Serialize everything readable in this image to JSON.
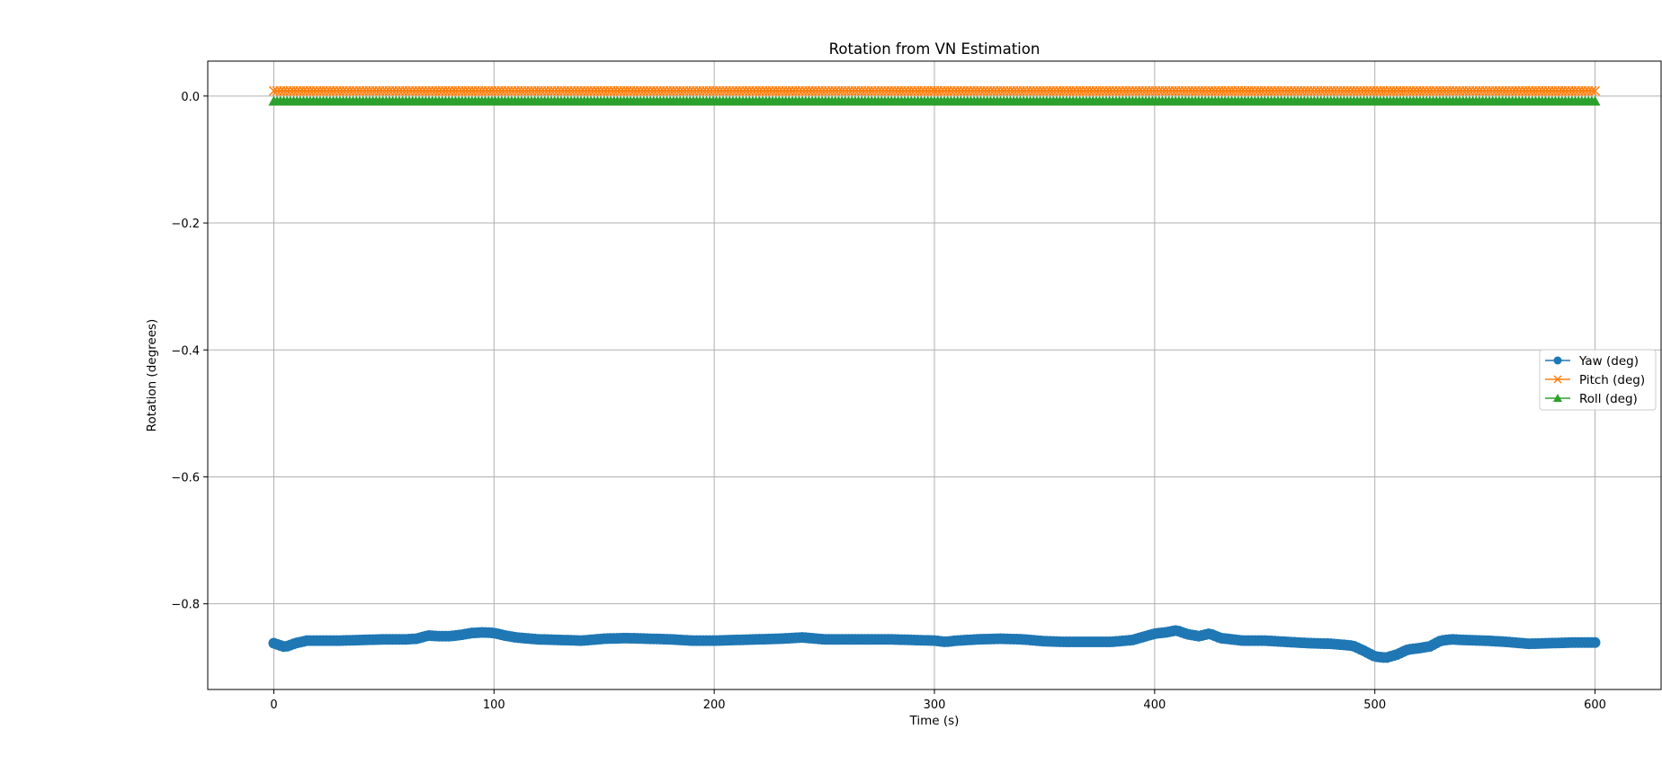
{
  "chart_data": {
    "type": "line",
    "title": "Rotation from VN Estimation",
    "xlabel": "Time (s)",
    "ylabel": "Rotation (degrees)",
    "xlim": [
      -30,
      630
    ],
    "ylim": [
      -0.935,
      0.055
    ],
    "xticks": [
      0,
      100,
      200,
      300,
      400,
      500,
      600
    ],
    "xtick_labels": [
      "0",
      "100",
      "200",
      "300",
      "400",
      "500",
      "600"
    ],
    "yticks": [
      0.0,
      -0.2,
      -0.4,
      -0.6,
      -0.8
    ],
    "ytick_labels": [
      "0.0",
      "−0.2",
      "−0.4",
      "−0.6",
      "−0.8"
    ],
    "grid": true,
    "legend_position": "center-right",
    "series": [
      {
        "name": "Yaw (deg)",
        "color": "#1f77b4",
        "marker": "circle",
        "x": [
          0,
          5,
          10,
          15,
          20,
          30,
          40,
          50,
          60,
          65,
          70,
          75,
          80,
          85,
          90,
          95,
          100,
          105,
          110,
          120,
          130,
          140,
          150,
          160,
          170,
          180,
          190,
          200,
          210,
          220,
          230,
          240,
          250,
          260,
          270,
          280,
          290,
          300,
          305,
          310,
          320,
          330,
          340,
          350,
          360,
          370,
          380,
          390,
          395,
          400,
          405,
          410,
          415,
          420,
          425,
          430,
          440,
          450,
          460,
          470,
          480,
          490,
          495,
          500,
          505,
          510,
          515,
          520,
          525,
          530,
          535,
          540,
          550,
          560,
          570,
          580,
          590,
          600
        ],
        "y": [
          -0.862,
          -0.868,
          -0.862,
          -0.858,
          -0.858,
          -0.858,
          -0.857,
          -0.856,
          -0.856,
          -0.855,
          -0.85,
          -0.851,
          -0.851,
          -0.849,
          -0.846,
          -0.845,
          -0.846,
          -0.85,
          -0.853,
          -0.856,
          -0.857,
          -0.858,
          -0.855,
          -0.854,
          -0.855,
          -0.856,
          -0.858,
          -0.858,
          -0.857,
          -0.856,
          -0.855,
          -0.853,
          -0.856,
          -0.856,
          -0.856,
          -0.856,
          -0.857,
          -0.858,
          -0.86,
          -0.858,
          -0.856,
          -0.855,
          -0.856,
          -0.859,
          -0.86,
          -0.86,
          -0.86,
          -0.857,
          -0.852,
          -0.847,
          -0.845,
          -0.842,
          -0.848,
          -0.851,
          -0.847,
          -0.854,
          -0.858,
          -0.858,
          -0.86,
          -0.862,
          -0.863,
          -0.866,
          -0.874,
          -0.883,
          -0.885,
          -0.88,
          -0.872,
          -0.87,
          -0.867,
          -0.858,
          -0.856,
          -0.857,
          -0.858,
          -0.86,
          -0.863,
          -0.862,
          -0.861,
          -0.861
        ]
      },
      {
        "name": "Pitch (deg)",
        "color": "#ff7f0e",
        "marker": "x",
        "x": [
          0,
          600
        ],
        "y": [
          0.008,
          0.008
        ]
      },
      {
        "name": "Roll (deg)",
        "color": "#2ca02c",
        "marker": "triangle",
        "x": [
          0,
          600
        ],
        "y": [
          -0.008,
          -0.008
        ]
      }
    ]
  }
}
